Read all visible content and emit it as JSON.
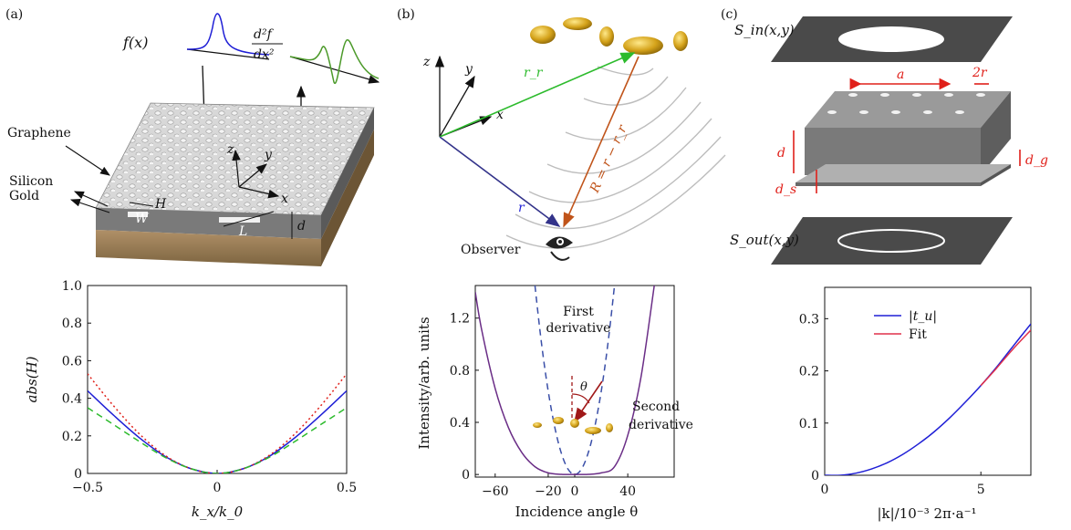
{
  "panels": {
    "a": "(a)",
    "b": "(b)",
    "c": "(c)"
  },
  "panel_a_top": {
    "f_label": "f(x)",
    "d2f_numer": "d²f",
    "d2f_denom": "dx²",
    "graphene": "Graphene",
    "silicon": "Silicon",
    "gold": "Gold",
    "W": "W",
    "H": "H",
    "L": "L",
    "d": "d",
    "z": "z",
    "y": "y",
    "x": "x"
  },
  "panel_b_top": {
    "z": "z",
    "y": "y",
    "x": "x",
    "rr": "r_r",
    "r": "r",
    "R_eq": "R = r − r_r",
    "observer": "Observer"
  },
  "panel_c_top": {
    "s_in": "S_in(x,y)",
    "s_out": "S_out(x,y)",
    "a": "a",
    "two_r": "2r",
    "d": "d",
    "d_g": "d_g",
    "d_s": "d_s"
  },
  "colors": {
    "blue": "#1f1fd6",
    "red": "#e0201a",
    "green": "#2dbb2d",
    "purple": "#6a2d86",
    "dashed_blue": "#3a4fa8",
    "fit_red": "#e0304a",
    "teal": "#2a7f9a"
  },
  "chart_data": [
    {
      "type": "line",
      "panel": "a",
      "xlabel": "k_x/k_0",
      "ylabel": "abs(H)",
      "xlim": [
        -0.5,
        0.5
      ],
      "ylim": [
        0,
        1.0
      ],
      "xticks": [
        "−0.5",
        "0",
        "0.5"
      ],
      "yticks": [
        "0",
        "0.2",
        "0.4",
        "0.6",
        "0.8",
        "1.0"
      ],
      "series": [
        {
          "style": "solid",
          "color": "blue",
          "x": [
            -0.5,
            -0.4,
            -0.3,
            -0.2,
            -0.1,
            0,
            0.1,
            0.2,
            0.3,
            0.4,
            0.5
          ],
          "y": [
            0.44,
            0.31,
            0.19,
            0.09,
            0.025,
            0,
            0.025,
            0.09,
            0.19,
            0.31,
            0.44
          ]
        },
        {
          "style": "dotted",
          "color": "red",
          "x": [
            -0.5,
            -0.4,
            -0.3,
            -0.2,
            -0.1,
            0,
            0.1,
            0.2,
            0.3,
            0.4,
            0.5
          ],
          "y": [
            0.53,
            0.36,
            0.21,
            0.095,
            0.025,
            0,
            0.025,
            0.095,
            0.21,
            0.36,
            0.53
          ]
        },
        {
          "style": "dashed",
          "color": "green",
          "x": [
            -0.5,
            -0.4,
            -0.3,
            -0.2,
            -0.1,
            0,
            0.1,
            0.2,
            0.3,
            0.4,
            0.5
          ],
          "y": [
            0.35,
            0.26,
            0.17,
            0.085,
            0.025,
            0,
            0.025,
            0.085,
            0.17,
            0.26,
            0.35
          ]
        }
      ]
    },
    {
      "type": "line",
      "panel": "b",
      "xlabel": "Incidence angle θ",
      "ylabel": "Intensity/arb. units",
      "xlim": [
        -75,
        75
      ],
      "ylim": [
        -0.02,
        1.45
      ],
      "xticks": [
        "−60",
        "−20",
        "0",
        "40"
      ],
      "yticks": [
        "0",
        "0.4",
        "0.8",
        "1.2"
      ],
      "annotations": [
        "First derivative",
        "Second derivative",
        "θ"
      ],
      "series": [
        {
          "style": "dashed",
          "color": "dashed_blue",
          "x": [
            -30,
            -25,
            -20,
            -15,
            -10,
            -5,
            0,
            5,
            10,
            15,
            20,
            25,
            30
          ],
          "y": [
            1.45,
            1.0,
            0.64,
            0.36,
            0.16,
            0.04,
            0,
            0.04,
            0.16,
            0.36,
            0.64,
            1.0,
            1.45
          ]
        },
        {
          "style": "solid",
          "color": "purple",
          "x": [
            -75,
            -70,
            -60,
            -50,
            -40,
            -30,
            -20,
            -10,
            0,
            10,
            20,
            30,
            40,
            50,
            60
          ],
          "y": [
            1.4,
            1.1,
            0.66,
            0.36,
            0.17,
            0.06,
            0.012,
            0.001,
            0,
            0.001,
            0.012,
            0.06,
            0.3,
            0.75,
            1.45
          ]
        }
      ]
    },
    {
      "type": "line",
      "panel": "c",
      "xlabel": "|k|/10⁻³ 2π·a⁻¹",
      "ylabel": "",
      "xlim": [
        0,
        6.6
      ],
      "ylim": [
        0,
        0.36
      ],
      "xticks": [
        "0",
        "5"
      ],
      "yticks": [
        "0",
        "0.1",
        "0.2",
        "0.3"
      ],
      "legend": [
        "|t_u|",
        "Fit"
      ],
      "series": [
        {
          "name": "|t_u|",
          "style": "solid",
          "color": "blue",
          "x": [
            0,
            0.5,
            1,
            1.5,
            2,
            2.5,
            3,
            3.5,
            4,
            4.5,
            5,
            5.5,
            6,
            6.6
          ],
          "y": [
            0,
            0.0,
            0.004,
            0.012,
            0.024,
            0.04,
            0.06,
            0.083,
            0.11,
            0.14,
            0.172,
            0.207,
            0.245,
            0.29
          ]
        },
        {
          "name": "Fit",
          "style": "solid",
          "color": "fit_red",
          "x": [
            5,
            5.5,
            6,
            6.6
          ],
          "y": [
            0.172,
            0.205,
            0.24,
            0.278
          ]
        }
      ]
    }
  ]
}
